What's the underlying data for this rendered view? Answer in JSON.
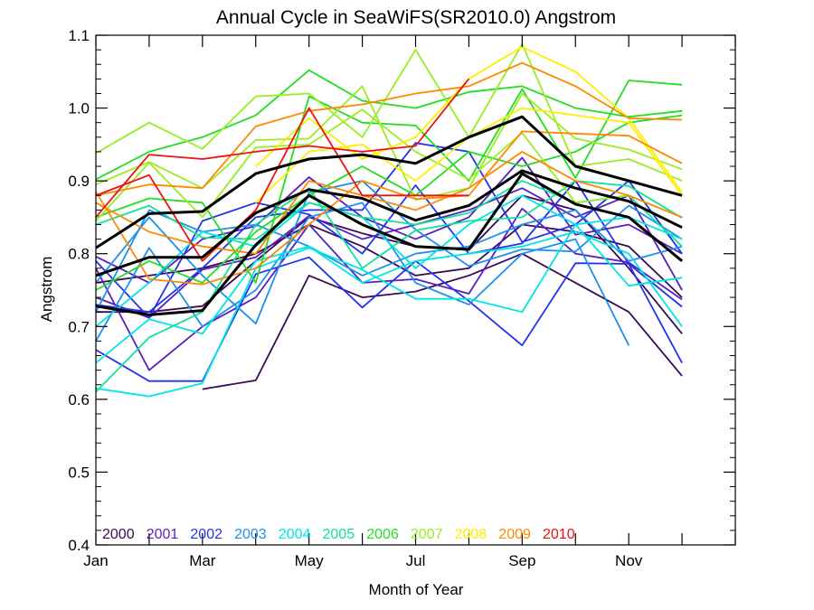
{
  "chart_data": {
    "type": "line",
    "title": "Annual Cycle in SeaWiFS(SR2010.0) Angstrom",
    "xlabel": "Month of Year",
    "ylabel": "Angstrom",
    "xlim": [
      1,
      13
    ],
    "ylim": [
      0.4,
      1.1
    ],
    "x_ticks": [
      {
        "value": 1,
        "label": "Jan"
      },
      {
        "value": 3,
        "label": "Mar"
      },
      {
        "value": 5,
        "label": "May"
      },
      {
        "value": 7,
        "label": "Jul"
      },
      {
        "value": 9,
        "label": "Sep"
      },
      {
        "value": 11,
        "label": "Nov"
      }
    ],
    "y_ticks": [
      {
        "value": 0.4,
        "label": "0.4"
      },
      {
        "value": 0.5,
        "label": "0.5"
      },
      {
        "value": 0.6,
        "label": "0.6"
      },
      {
        "value": 0.7,
        "label": "0.7"
      },
      {
        "value": 0.8,
        "label": "0.8"
      },
      {
        "value": 0.9,
        "label": "0.9"
      },
      {
        "value": 1.0,
        "label": "1.0"
      },
      {
        "value": 1.1,
        "label": "1.1"
      }
    ],
    "grid": false,
    "legend_position": "bottom-left",
    "months": [
      1,
      2,
      3,
      4,
      5,
      6,
      7,
      8,
      9,
      10,
      11,
      12
    ],
    "series": [
      {
        "name": "2000",
        "color": "#3b0a57",
        "lines": [
          [
            null,
            null,
            0.614,
            0.626,
            0.77,
            0.74,
            0.748,
            0.77,
            0.8,
            0.76,
            0.72,
            0.632
          ],
          [
            0.72,
            0.72,
            0.728,
            0.79,
            0.85,
            0.828,
            0.81,
            0.805,
            0.88,
            0.86,
            0.78,
            0.69
          ],
          [
            0.76,
            0.77,
            0.78,
            0.8,
            0.84,
            0.81,
            0.77,
            0.78,
            0.84,
            0.83,
            0.81,
            0.74
          ]
        ]
      },
      {
        "name": "2001",
        "color": "#5a1fbf",
        "lines": [
          [
            0.78,
            0.64,
            0.7,
            0.74,
            0.84,
            0.76,
            0.765,
            0.745,
            0.862,
            0.8,
            0.788,
            0.737
          ],
          [
            0.796,
            0.76,
            0.82,
            0.838,
            0.905,
            0.85,
            0.82,
            0.85,
            0.932,
            0.826,
            0.84,
            0.8
          ],
          [
            0.74,
            0.712,
            0.778,
            0.795,
            0.852,
            0.82,
            0.84,
            0.86,
            0.89,
            0.85,
            0.88,
            0.75
          ]
        ]
      },
      {
        "name": "2002",
        "color": "#2233ee",
        "lines": [
          [
            0.668,
            0.625,
            0.625,
            0.772,
            0.795,
            0.726,
            0.79,
            0.735,
            0.674,
            0.787,
            0.786,
            0.65
          ],
          [
            0.79,
            0.712,
            0.845,
            0.87,
            0.854,
            0.8,
            0.894,
            0.8,
            0.814,
            0.9,
            0.786,
            0.727
          ],
          [
            0.73,
            0.72,
            0.78,
            0.85,
            0.86,
            0.86,
            0.952,
            0.94,
            0.816,
            0.84,
            0.9,
            0.8
          ]
        ]
      },
      {
        "name": "2003",
        "color": "#1e90ee",
        "lines": [
          [
            0.68,
            0.808,
            0.7,
            0.75,
            0.85,
            0.87,
            0.76,
            0.73,
            0.8,
            0.82,
            0.674,
            null
          ],
          [
            0.76,
            0.85,
            0.77,
            0.704,
            0.884,
            0.9,
            0.833,
            0.783,
            0.806,
            0.803,
            0.866,
            0.82
          ],
          [
            0.72,
            0.86,
            0.83,
            0.84,
            0.81,
            0.77,
            0.8,
            0.81,
            0.84,
            0.86,
            0.79,
            0.81
          ]
        ]
      },
      {
        "name": "2004",
        "color": "#00e5e5",
        "lines": [
          [
            0.615,
            0.604,
            0.622,
            0.78,
            0.808,
            0.778,
            0.738,
            0.738,
            0.72,
            0.84,
            0.756,
            0.767
          ],
          [
            0.65,
            0.71,
            0.69,
            0.79,
            0.81,
            0.76,
            0.79,
            0.8,
            0.81,
            0.83,
            0.8,
            0.7
          ],
          [
            0.7,
            0.76,
            0.83,
            0.81,
            0.87,
            0.85,
            0.78,
            0.84,
            0.88,
            0.84,
            0.85,
            0.82
          ]
        ]
      },
      {
        "name": "2005",
        "color": "#11e39a",
        "lines": [
          [
            0.61,
            0.685,
            0.72,
            0.84,
            0.89,
            0.78,
            0.832,
            0.845,
            0.85,
            0.9,
            0.893,
            0.849
          ],
          [
            0.84,
            0.866,
            0.822,
            0.82,
            0.87,
            0.85,
            0.84,
            0.856,
            0.9,
            0.87,
            0.88,
            0.81
          ]
        ]
      },
      {
        "name": "2006",
        "color": "#22dd22",
        "lines": [
          [
            0.902,
            0.94,
            0.96,
            0.99,
            1.052,
            1.01,
            1.0,
            1.022,
            1.03,
            1.0,
            0.988,
            0.996
          ],
          [
            0.85,
            0.876,
            0.87,
            0.76,
            1.016,
            0.98,
            0.976,
            0.9,
            1.026,
            0.904,
            1.038,
            1.032
          ],
          [
            0.75,
            0.79,
            0.76,
            0.83,
            0.88,
            0.92,
            0.88,
            0.94,
            0.92,
            0.94,
            0.98,
            0.99
          ]
        ]
      },
      {
        "name": "2007",
        "color": "#99ee22",
        "lines": [
          [
            0.938,
            0.98,
            0.944,
            1.016,
            1.02,
            0.96,
            1.08,
            0.96,
            1.088,
            0.92,
            0.93,
            0.9
          ],
          [
            0.895,
            0.926,
            0.89,
            0.956,
            0.958,
            1.03,
            0.874,
            0.89,
            1.02,
            0.958,
            0.943,
            0.916
          ],
          [
            0.845,
            0.925,
            0.85,
            0.946,
            0.95,
            0.998,
            0.94,
            0.902,
            0.966,
            0.87,
            0.88,
            0.85
          ]
        ]
      },
      {
        "name": "2008",
        "color": "#ffee00",
        "lines": [
          [
            null,
            null,
            null,
            0.92,
            0.986,
            0.93,
            0.96,
            1.04,
            1.084,
            1.05,
            0.986,
            0.884
          ],
          [
            null,
            null,
            null,
            0.87,
            0.94,
            0.95,
            0.9,
            0.96,
            1.0,
            0.99,
            0.98,
            0.88
          ]
        ]
      },
      {
        "name": "2009",
        "color": "#ff8800",
        "lines": [
          [
            0.88,
            0.895,
            0.89,
            0.975,
            0.996,
            1.005,
            1.02,
            1.03,
            1.062,
            1.03,
            0.986,
            0.984
          ],
          [
            0.885,
            0.765,
            0.758,
            0.78,
            0.84,
            0.9,
            0.875,
            0.88,
            0.968,
            0.965,
            0.962,
            0.924
          ],
          [
            0.87,
            0.83,
            0.81,
            0.8,
            0.9,
            0.88,
            0.86,
            0.89,
            0.94,
            0.9,
            0.88,
            0.85
          ]
        ]
      },
      {
        "name": "2010",
        "color": "#ee1111",
        "lines": [
          [
            0.85,
            0.936,
            0.93,
            0.94,
            0.948,
            0.94,
            0.948,
            1.04,
            null,
            null,
            null,
            null
          ],
          [
            0.88,
            0.908,
            0.79,
            0.86,
            1.0,
            0.88,
            0.88,
            0.88,
            null,
            null,
            null,
            null
          ]
        ]
      }
    ],
    "climatology": {
      "color": "#000000",
      "lines": [
        [
          0.808,
          0.855,
          0.858,
          0.91,
          0.93,
          0.936,
          0.924,
          0.96,
          0.988,
          0.92,
          0.9,
          0.88
        ],
        [
          0.77,
          0.795,
          0.795,
          0.856,
          0.888,
          0.876,
          0.846,
          0.866,
          0.914,
          0.89,
          0.872,
          0.836
        ],
        [
          0.728,
          0.716,
          0.722,
          0.812,
          0.88,
          0.84,
          0.81,
          0.806,
          0.91,
          0.868,
          0.85,
          0.79
        ]
      ]
    }
  }
}
